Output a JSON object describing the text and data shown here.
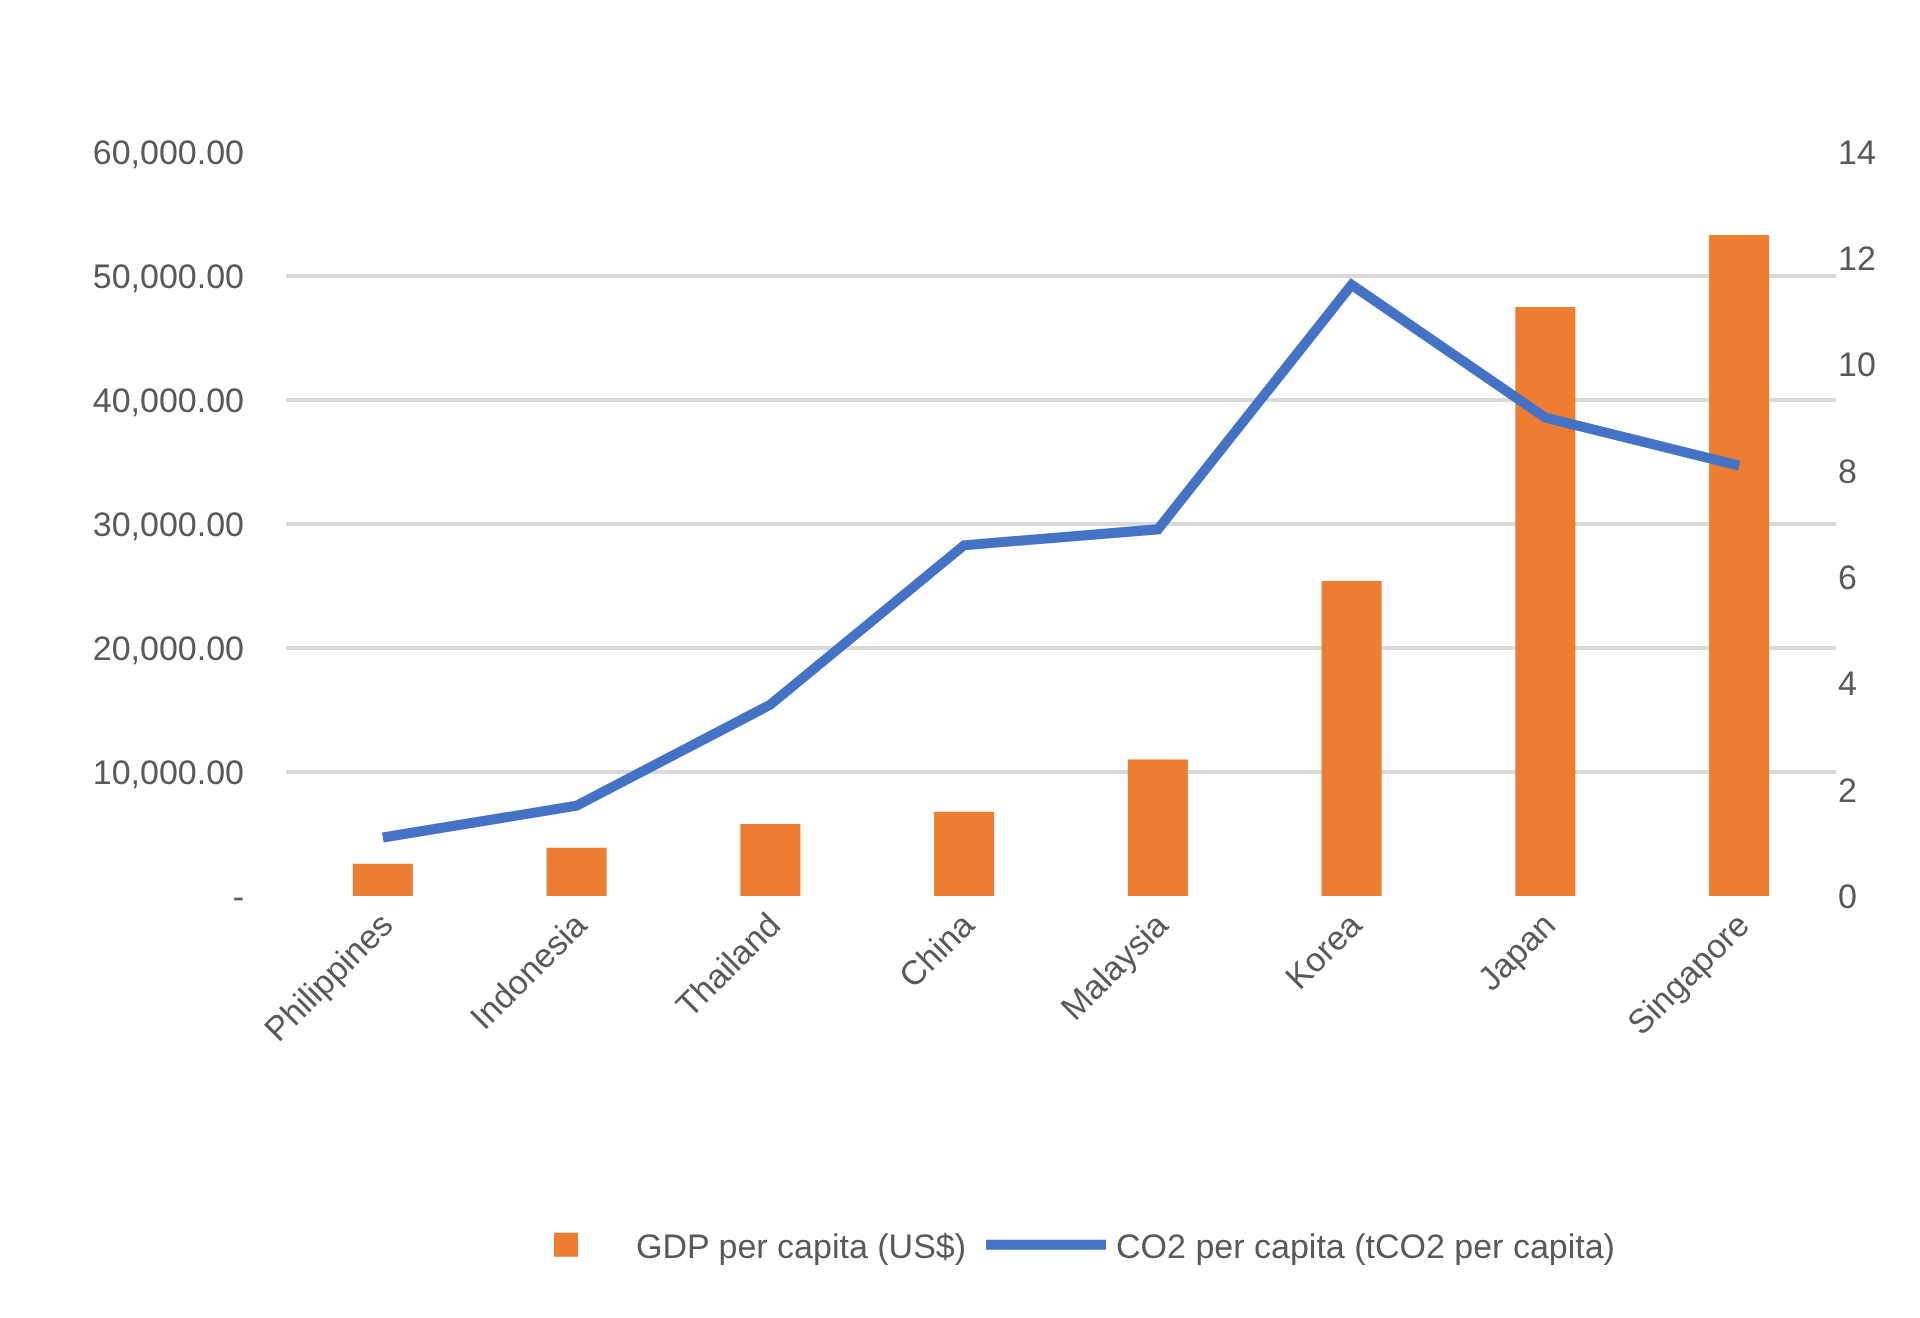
{
  "chart_data": {
    "type": "bar",
    "categories": [
      "Philippines",
      "Indonesia",
      "Thailand",
      "China",
      "Malaysia",
      "Korea",
      "Japan",
      "Singapore"
    ],
    "series": [
      {
        "name": "GDP per capita (US$)",
        "color": "#ed7d31",
        "values": [
          2600,
          3900,
          5800,
          6800,
          11000,
          25400,
          47500,
          53300
        ]
      },
      {
        "name": "CO2 per capita (tCO2 per capita)",
        "type": "line",
        "axis": "y2",
        "color": "#4472c4",
        "values": [
          1.1,
          1.7,
          3.6,
          6.6,
          6.9,
          11.5,
          9.0,
          8.1
        ]
      }
    ],
    "ylim": [
      0,
      60000
    ],
    "yticks": [
      {
        "value": 0,
        "label": "-"
      },
      {
        "value": 10000,
        "label": "10,000.00"
      },
      {
        "value": 20000,
        "label": "20,000.00"
      },
      {
        "value": 30000,
        "label": "30,000.00"
      },
      {
        "value": 40000,
        "label": "40,000.00"
      },
      {
        "value": 50000,
        "label": "50,000.00"
      },
      {
        "value": 60000,
        "label": "60,000.00"
      }
    ],
    "y2lim": [
      0,
      14
    ],
    "y2ticks": [
      0,
      2,
      4,
      6,
      8,
      10,
      12,
      14
    ],
    "grid": "y",
    "legend": "bottom",
    "marker": "none",
    "line_style": "solid"
  }
}
